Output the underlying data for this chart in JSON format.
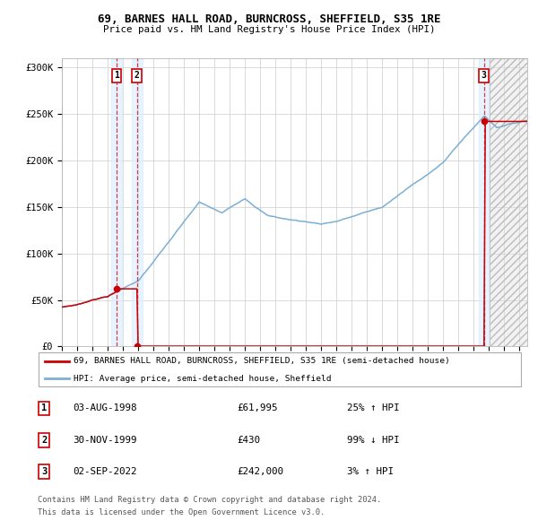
{
  "title": "69, BARNES HALL ROAD, BURNCROSS, SHEFFIELD, S35 1RE",
  "subtitle": "Price paid vs. HM Land Registry's House Price Index (HPI)",
  "property_label": "69, BARNES HALL ROAD, BURNCROSS, SHEFFIELD, S35 1RE (semi-detached house)",
  "hpi_label": "HPI: Average price, semi-detached house, Sheffield",
  "sales": [
    {
      "num": 1,
      "date_label": "03-AUG-1998",
      "date_x": 1998.583,
      "price": 61995,
      "pct": "25%",
      "dir": "↑"
    },
    {
      "num": 2,
      "date_label": "30-NOV-1999",
      "date_x": 1999.917,
      "price": 430,
      "pct": "99%",
      "dir": "↓"
    },
    {
      "num": 3,
      "date_label": "02-SEP-2022",
      "date_x": 2022.667,
      "price": 242000,
      "pct": "3%",
      "dir": "↑"
    }
  ],
  "sale_rows": [
    {
      "num": 1,
      "date": "03-AUG-1998",
      "price": "£61,995",
      "hpi": "25% ↑ HPI"
    },
    {
      "num": 2,
      "date": "30-NOV-1999",
      "price": "£430",
      "hpi": "99% ↓ HPI"
    },
    {
      "num": 3,
      "date": "02-SEP-2022",
      "price": "£242,000",
      "hpi": "3% ↑ HPI"
    }
  ],
  "xmin": 1995.0,
  "xmax": 2025.5,
  "ymin": 0,
  "ymax": 310000,
  "yticks": [
    0,
    50000,
    100000,
    150000,
    200000,
    250000,
    300000
  ],
  "ytick_labels": [
    "£0",
    "£50K",
    "£100K",
    "£150K",
    "£200K",
    "£250K",
    "£300K"
  ],
  "red_line_color": "#cc0000",
  "blue_line_color": "#7bafd4",
  "highlight_color": "#ddeeff",
  "grid_color": "#cccccc",
  "footnote1": "Contains HM Land Registry data © Crown copyright and database right 2024.",
  "footnote2": "This data is licensed under the Open Government Licence v3.0."
}
